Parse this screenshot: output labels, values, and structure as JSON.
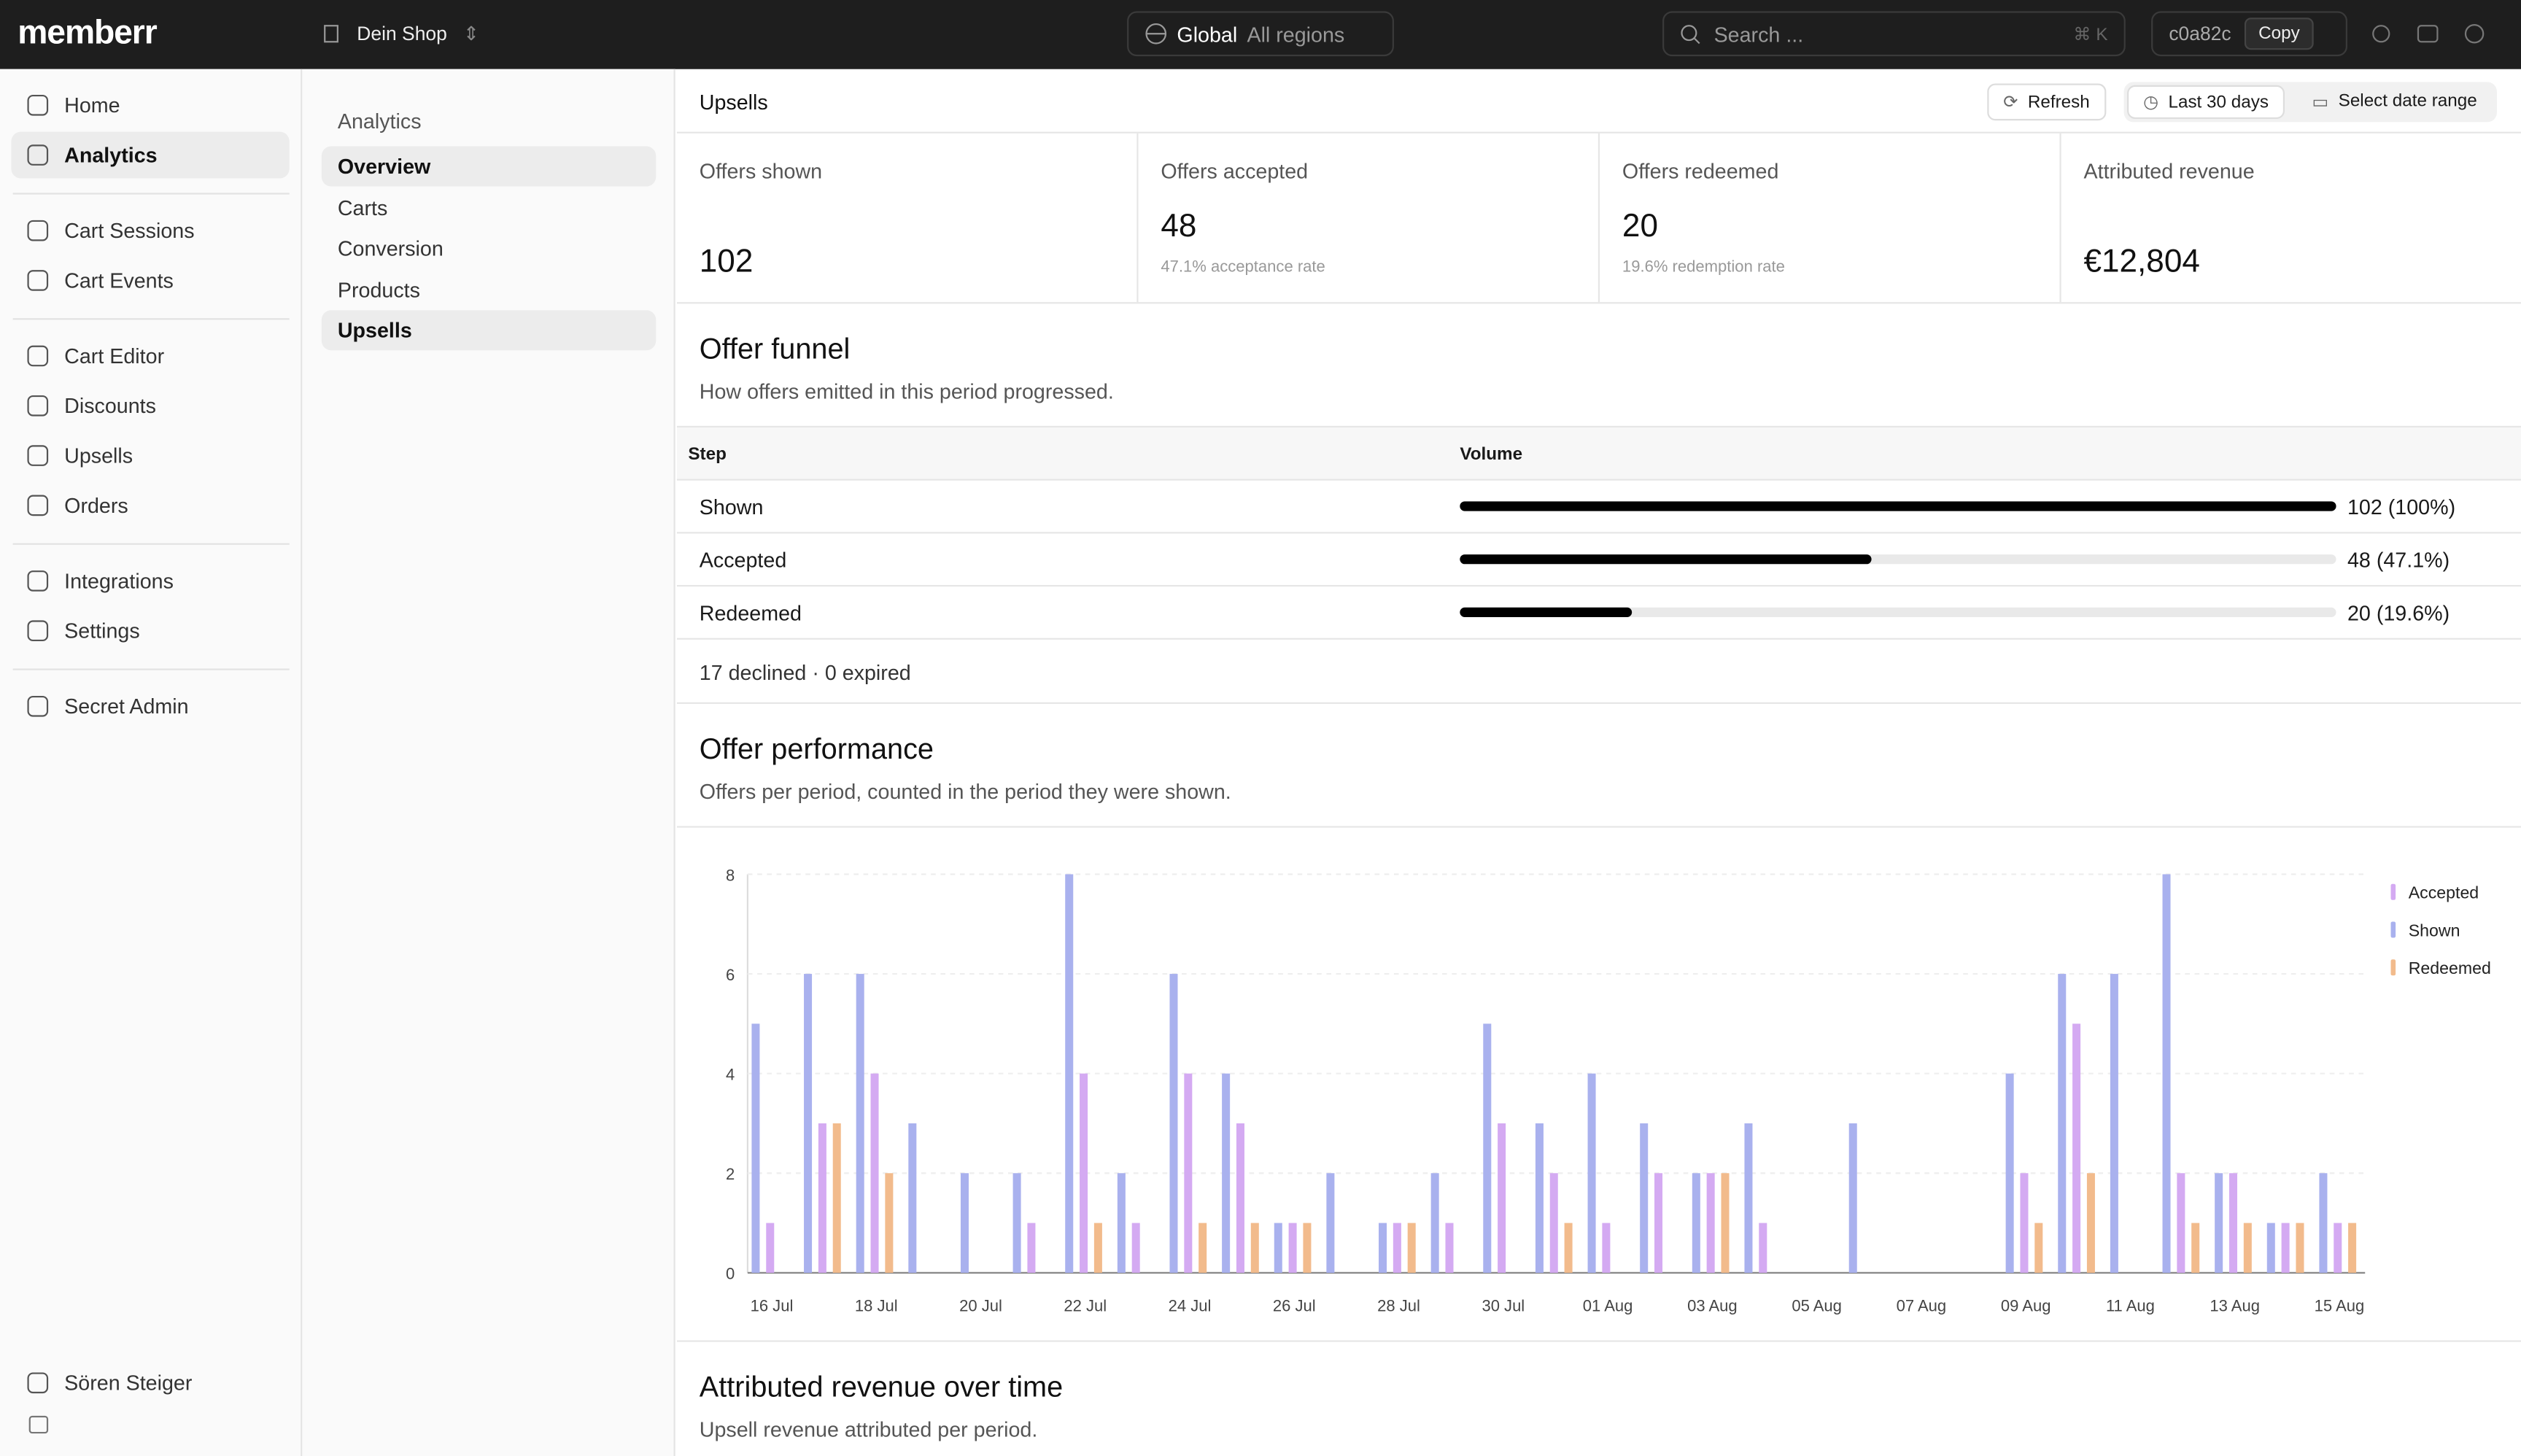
{
  "header": {
    "logo": "memberr",
    "shop": "Dein Shop",
    "region": "Global",
    "region_sub": "All regions",
    "search": "Search ...",
    "shortcut": "⌘ K",
    "id": "c0a82c",
    "copy": "Copy"
  },
  "sidebar": {
    "groups": [
      [
        "Home",
        "Analytics"
      ],
      [
        "Cart Sessions",
        "Cart Events"
      ],
      [
        "Cart Editor",
        "Discounts",
        "Upsells",
        "Orders"
      ],
      [
        "Integrations",
        "Settings"
      ],
      [
        "Secret Admin"
      ]
    ],
    "user": "Sören Steiger"
  },
  "subnav": {
    "title": "Analytics",
    "items": [
      "Overview",
      "Carts",
      "Conversion",
      "Products",
      "Upsells"
    ]
  },
  "toolbar": {
    "title": "Upsells",
    "refresh": "Refresh",
    "period": "Last 30 days",
    "range": "Select date range"
  },
  "metrics": [
    {
      "label": "Offers shown",
      "value": "102"
    },
    {
      "label": "Offers accepted",
      "value": "48",
      "note": "47.1% acceptance rate"
    },
    {
      "label": "Offers redeemed",
      "value": "20",
      "note": "19.6% redemption rate"
    },
    {
      "label": "Attributed revenue",
      "value": "€12,804"
    }
  ],
  "funnel": {
    "title": "Offer funnel",
    "subtitle": "How offers emitted in this period progressed.",
    "columns": [
      "Step",
      "Volume"
    ],
    "steps": [
      "Shown",
      "Accepted",
      "Redeemed"
    ],
    "values": [
      102,
      48,
      20
    ],
    "value_labels": [
      "102 (100%)",
      "48 (47.1%)",
      "20 (19.6%)"
    ],
    "footer": "17 declined · 0 expired"
  },
  "chart_data": {
    "type": "bar",
    "title": "Offer performance",
    "subtitle": "Offers per period, counted in the period they were shown.",
    "categories": [
      "16 Jul",
      null,
      "18 Jul",
      null,
      "20 Jul",
      null,
      "22 Jul",
      null,
      "24 Jul",
      null,
      "26 Jul",
      null,
      "28 Jul",
      null,
      "30 Jul",
      null,
      "01 Aug",
      null,
      "03 Aug",
      null,
      "05 Aug",
      null,
      "07 Aug",
      null,
      "09 Aug",
      null,
      "11 Aug",
      null,
      "13 Aug",
      null,
      "15 Aug"
    ],
    "series": [
      {
        "name": "Accepted",
        "color": "#d4aaf2",
        "values": [
          1,
          3,
          4,
          0,
          0,
          1,
          4,
          1,
          4,
          3,
          1,
          0,
          1,
          1,
          3,
          2,
          1,
          2,
          2,
          1,
          0,
          0,
          0,
          0,
          2,
          5,
          0,
          2,
          2,
          1,
          1
        ]
      },
      {
        "name": "Shown",
        "color": "#a9b1ee",
        "values": [
          5,
          6,
          6,
          3,
          2,
          2,
          8,
          2,
          6,
          4,
          1,
          2,
          1,
          2,
          5,
          3,
          4,
          3,
          2,
          3,
          0,
          3,
          0,
          0,
          4,
          6,
          6,
          8,
          2,
          1,
          2
        ]
      },
      {
        "name": "Redeemed",
        "color": "#f2bb8c",
        "values": [
          0,
          3,
          2,
          0,
          0,
          0,
          1,
          0,
          1,
          1,
          1,
          0,
          1,
          0,
          0,
          1,
          0,
          0,
          2,
          0,
          0,
          0,
          0,
          0,
          1,
          2,
          0,
          1,
          1,
          1,
          1
        ]
      }
    ],
    "ylim": [
      0,
      8
    ],
    "yticks": [
      0,
      2,
      4,
      6,
      8
    ],
    "grid": true,
    "legend": "top-right"
  },
  "revenue": {
    "title": "Attributed revenue over time",
    "subtitle": "Upsell revenue attributed per period."
  }
}
